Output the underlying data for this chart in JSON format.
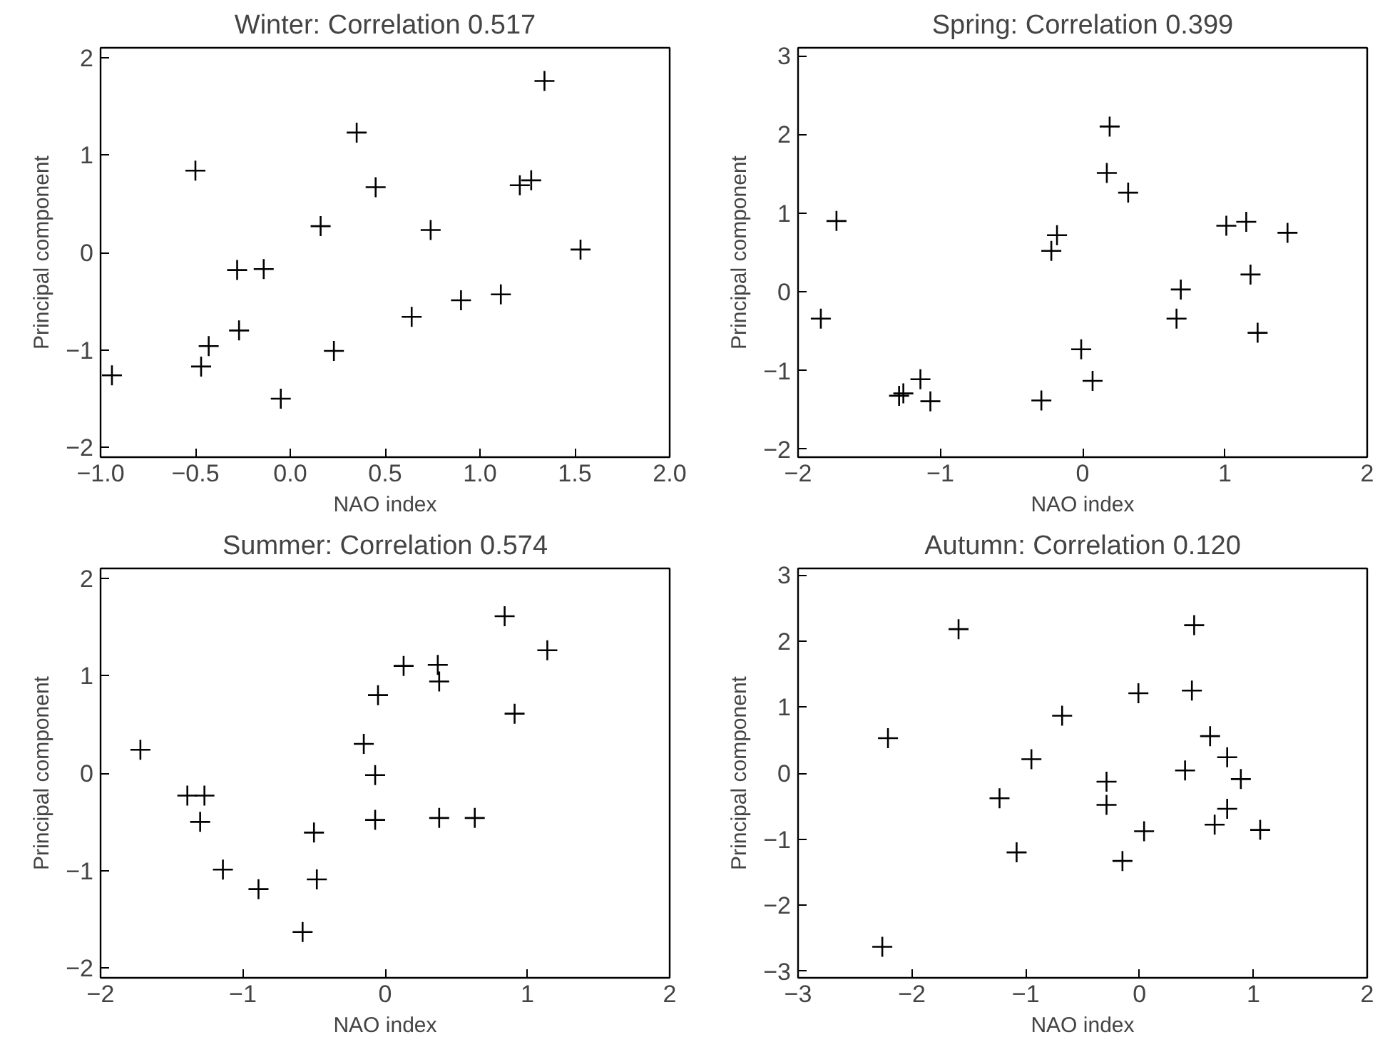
{
  "chart_data": [
    {
      "type": "scatter",
      "title": "Winter: Correlation 0.517",
      "xlabel": "NAO index",
      "ylabel": "Principal component",
      "marker": "cross",
      "grid": false,
      "xlim": [
        -1,
        2
      ],
      "ylim": [
        -2.1,
        2.1
      ],
      "xticks": [
        {
          "value": -1,
          "label": "−1.0"
        },
        {
          "value": -0.5,
          "label": "−0.5"
        },
        {
          "value": 0,
          "label": "0.0"
        },
        {
          "value": 0.5,
          "label": "0.5"
        },
        {
          "value": 1,
          "label": "1.0"
        },
        {
          "value": 1.5,
          "label": "1.5"
        },
        {
          "value": 2,
          "label": "2.0"
        }
      ],
      "yticks": [
        {
          "value": -2,
          "label": "−2"
        },
        {
          "value": -1,
          "label": "−1"
        },
        0,
        1,
        2
      ],
      "series": [
        {
          "color": "#000000",
          "x": [
            -0.94,
            -0.5,
            -0.47,
            -0.43,
            -0.28,
            -0.27,
            -0.14,
            -0.05,
            0.16,
            0.23,
            0.35,
            0.45,
            0.64,
            0.74,
            0.9,
            1.11,
            1.21,
            1.27,
            1.34,
            1.53
          ],
          "values": [
            -1.26,
            0.84,
            -1.17,
            -0.96,
            -0.18,
            -0.8,
            -0.17,
            -1.5,
            0.27,
            -1.01,
            1.23,
            0.67,
            -0.66,
            0.23,
            -0.49,
            -0.43,
            0.69,
            0.74,
            1.76,
            0.03
          ]
        }
      ]
    },
    {
      "type": "scatter",
      "title": "Spring: Correlation 0.399",
      "xlabel": "NAO index",
      "ylabel": "Principal component",
      "marker": "cross",
      "grid": false,
      "xlim": [
        -2,
        2
      ],
      "ylim": [
        -2.1,
        3.1
      ],
      "xticks": [
        {
          "value": -2,
          "label": "−2"
        },
        {
          "value": -1,
          "label": "−1"
        },
        0,
        1,
        2
      ],
      "yticks": [
        {
          "value": -2,
          "label": "−2"
        },
        {
          "value": -1,
          "label": "−1"
        },
        0,
        1,
        2,
        3
      ],
      "series": [
        {
          "color": "#000000",
          "x": [
            -1.84,
            -1.73,
            -1.29,
            -1.26,
            -1.14,
            -1.07,
            -0.29,
            -0.22,
            -0.18,
            -0.01,
            0.07,
            0.17,
            0.19,
            0.32,
            0.66,
            0.69,
            1.01,
            1.15,
            1.18,
            1.23,
            1.44
          ],
          "values": [
            -0.34,
            0.9,
            -1.32,
            -1.29,
            -1.11,
            -1.39,
            -1.38,
            0.52,
            0.72,
            -0.73,
            -1.13,
            1.51,
            2.1,
            1.26,
            -0.34,
            0.03,
            0.84,
            0.89,
            0.22,
            -0.52,
            0.75
          ]
        }
      ]
    },
    {
      "type": "scatter",
      "title": "Summer: Correlation 0.574",
      "xlabel": "NAO index",
      "ylabel": "Principal component",
      "marker": "cross",
      "grid": false,
      "xlim": [
        -2,
        2
      ],
      "ylim": [
        -2.1,
        2.1
      ],
      "xticks": [
        {
          "value": -2,
          "label": "−2"
        },
        {
          "value": -1,
          "label": "−1"
        },
        0,
        1,
        2
      ],
      "yticks": [
        {
          "value": -2,
          "label": "−2"
        },
        {
          "value": -1,
          "label": "−1"
        },
        0,
        1,
        2
      ],
      "series": [
        {
          "color": "#000000",
          "x": [
            -1.72,
            -1.39,
            -1.27,
            -1.3,
            -1.14,
            -0.89,
            -0.58,
            -0.5,
            -0.48,
            -0.15,
            -0.07,
            -0.07,
            -0.05,
            0.13,
            0.37,
            0.38,
            0.38,
            0.63,
            0.84,
            0.91,
            1.14
          ],
          "values": [
            0.24,
            -0.23,
            -0.23,
            -0.5,
            -0.99,
            -1.19,
            -1.63,
            -0.61,
            -1.09,
            0.3,
            -0.02,
            -0.48,
            0.8,
            1.1,
            1.11,
            0.94,
            -0.46,
            -0.46,
            1.61,
            0.61,
            1.26
          ]
        }
      ]
    },
    {
      "type": "scatter",
      "title": "Autumn: Correlation 0.120",
      "xlabel": "NAO index",
      "ylabel": "Principal component",
      "marker": "cross",
      "grid": false,
      "xlim": [
        -3,
        2
      ],
      "ylim": [
        -3.1,
        3.1
      ],
      "xticks": [
        {
          "value": -3,
          "label": "−3"
        },
        {
          "value": -2,
          "label": "−2"
        },
        {
          "value": -1,
          "label": "−1"
        },
        0,
        1,
        2
      ],
      "yticks": [
        {
          "value": -3,
          "label": "−3"
        },
        {
          "value": -2,
          "label": "−2"
        },
        {
          "value": -1,
          "label": "−1"
        },
        0,
        1,
        2,
        3
      ],
      "series": [
        {
          "color": "#000000",
          "x": [
            -2.26,
            -2.21,
            -1.59,
            -1.23,
            -1.08,
            -0.95,
            -0.68,
            -0.29,
            -0.29,
            -0.15,
            -0.01,
            0.04,
            0.4,
            0.46,
            0.48,
            0.62,
            0.66,
            0.77,
            0.77,
            0.89,
            1.06
          ],
          "values": [
            -2.63,
            0.53,
            2.18,
            -0.38,
            -1.2,
            0.21,
            0.87,
            -0.13,
            -0.48,
            -1.33,
            1.21,
            -0.88,
            0.04,
            1.25,
            2.24,
            0.56,
            -0.78,
            -0.54,
            0.24,
            -0.09,
            -0.86
          ]
        }
      ]
    }
  ]
}
